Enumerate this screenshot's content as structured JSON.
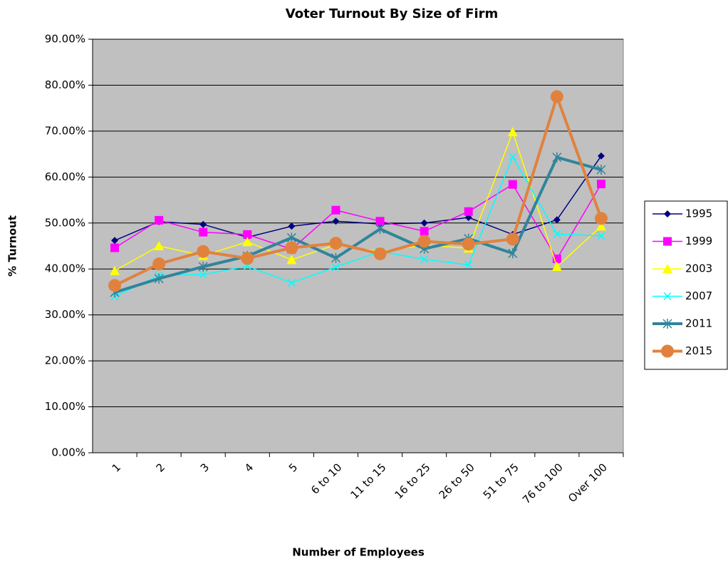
{
  "chart_data": {
    "type": "line",
    "title": "Voter Turnout By Size of Firm",
    "x_label": "Number of Employees",
    "y_label": "% Turnout",
    "categories": [
      "1",
      "2",
      "3",
      "4",
      "5",
      "6 to 10",
      "11 to 15",
      "16 to 25",
      "26 to 50",
      "51 to 75",
      "76 to 100",
      "Over 100"
    ],
    "ylim": [
      0,
      90
    ],
    "yticks": [
      {
        "value": 0,
        "label": "0.00%"
      },
      {
        "value": 10,
        "label": "10.00%"
      },
      {
        "value": 20,
        "label": "20.00%"
      },
      {
        "value": 30,
        "label": "30.00%"
      },
      {
        "value": 40,
        "label": "40.00%"
      },
      {
        "value": 50,
        "label": "50.00%"
      },
      {
        "value": 60,
        "label": "60.00%"
      },
      {
        "value": 70,
        "label": "70.00%"
      },
      {
        "value": 80,
        "label": "80.00%"
      },
      {
        "value": 90,
        "label": "90.00%"
      }
    ],
    "grid": true,
    "plot_background": "#c0c0c0",
    "legend": "right",
    "series": [
      {
        "name": "1995",
        "color": "#000080",
        "marker": "diamond",
        "line_width": 1.5,
        "values": [
          46.2,
          50.3,
          49.7,
          46.9,
          49.3,
          50.4,
          49.8,
          50.0,
          51.2,
          47.5,
          50.7,
          64.6
        ]
      },
      {
        "name": "1999",
        "color": "#ff00ff",
        "marker": "square",
        "line_width": 1.5,
        "values": [
          44.6,
          50.6,
          48.0,
          47.5,
          44.3,
          52.8,
          50.4,
          48.2,
          52.5,
          58.4,
          42.2,
          58.5
        ]
      },
      {
        "name": "2003",
        "color": "#ffff00",
        "marker": "triangle",
        "line_width": 1.5,
        "values": [
          39.6,
          45.0,
          42.9,
          45.9,
          42.0,
          45.3,
          43.8,
          45.2,
          44.5,
          69.8,
          40.5,
          49.3
        ]
      },
      {
        "name": "2007",
        "color": "#00ffff",
        "marker": "x",
        "line_width": 1.5,
        "values": [
          34.0,
          38.6,
          38.8,
          40.6,
          37.0,
          40.4,
          43.8,
          42.1,
          40.9,
          64.4,
          47.6,
          47.2
        ]
      },
      {
        "name": "2011",
        "color": "#31849b",
        "marker": "asterisk",
        "line_width": 4,
        "values": [
          34.9,
          37.9,
          40.5,
          42.8,
          46.8,
          42.4,
          48.7,
          44.4,
          46.6,
          43.4,
          64.3,
          61.6
        ]
      },
      {
        "name": "2015",
        "color": "#e0823e",
        "marker": "circle",
        "line_width": 4,
        "values": [
          36.4,
          41.1,
          43.8,
          42.3,
          44.6,
          45.6,
          43.3,
          46.0,
          45.4,
          46.5,
          77.5,
          51.0
        ]
      }
    ]
  }
}
